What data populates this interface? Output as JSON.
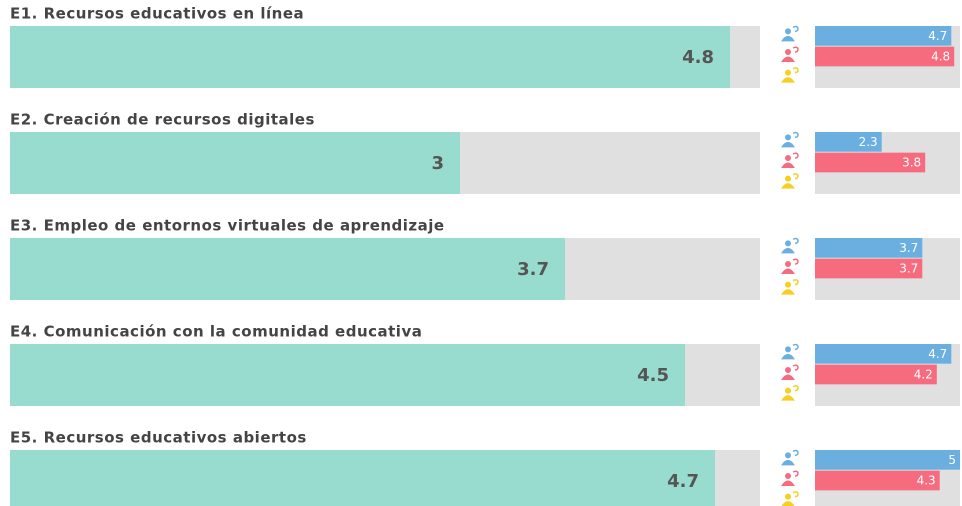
{
  "chart_data": [
    {
      "type": "bar",
      "title": "E1. Recursos educativos en línea",
      "xlim": [
        0,
        5
      ],
      "value": 4.8,
      "color": "#97dccf",
      "breakdown": {
        "xlim": [
          0,
          5
        ],
        "values": [
          4.7,
          4.8,
          null
        ],
        "colors": [
          "#6aafe0",
          "#f76b7f",
          "#f5d020"
        ]
      }
    },
    {
      "type": "bar",
      "title": "E2. Creación de recursos digitales",
      "xlim": [
        0,
        5
      ],
      "value": 3,
      "color": "#97dccf",
      "breakdown": {
        "xlim": [
          0,
          5
        ],
        "values": [
          2.3,
          3.8,
          null
        ],
        "colors": [
          "#6aafe0",
          "#f76b7f",
          "#f5d020"
        ]
      }
    },
    {
      "type": "bar",
      "title": "E3. Empleo de entornos virtuales de aprendizaje",
      "xlim": [
        0,
        5
      ],
      "value": 3.7,
      "color": "#97dccf",
      "breakdown": {
        "xlim": [
          0,
          5
        ],
        "values": [
          3.7,
          3.7,
          null
        ],
        "colors": [
          "#6aafe0",
          "#f76b7f",
          "#f5d020"
        ]
      }
    },
    {
      "type": "bar",
      "title": "E4. Comunicación con la comunidad educativa",
      "xlim": [
        0,
        5
      ],
      "value": 4.5,
      "color": "#97dccf",
      "breakdown": {
        "xlim": [
          0,
          5
        ],
        "values": [
          4.7,
          4.2,
          null
        ],
        "colors": [
          "#6aafe0",
          "#f76b7f",
          "#f5d020"
        ]
      }
    },
    {
      "type": "bar",
      "title": "E5. Recursos educativos abiertos",
      "xlim": [
        0,
        5
      ],
      "value": 4.7,
      "color": "#97dccf",
      "breakdown": {
        "xlim": [
          0,
          5
        ],
        "values": [
          5,
          4.3,
          null
        ],
        "colors": [
          "#6aafe0",
          "#f76b7f",
          "#f5d020"
        ]
      }
    }
  ]
}
